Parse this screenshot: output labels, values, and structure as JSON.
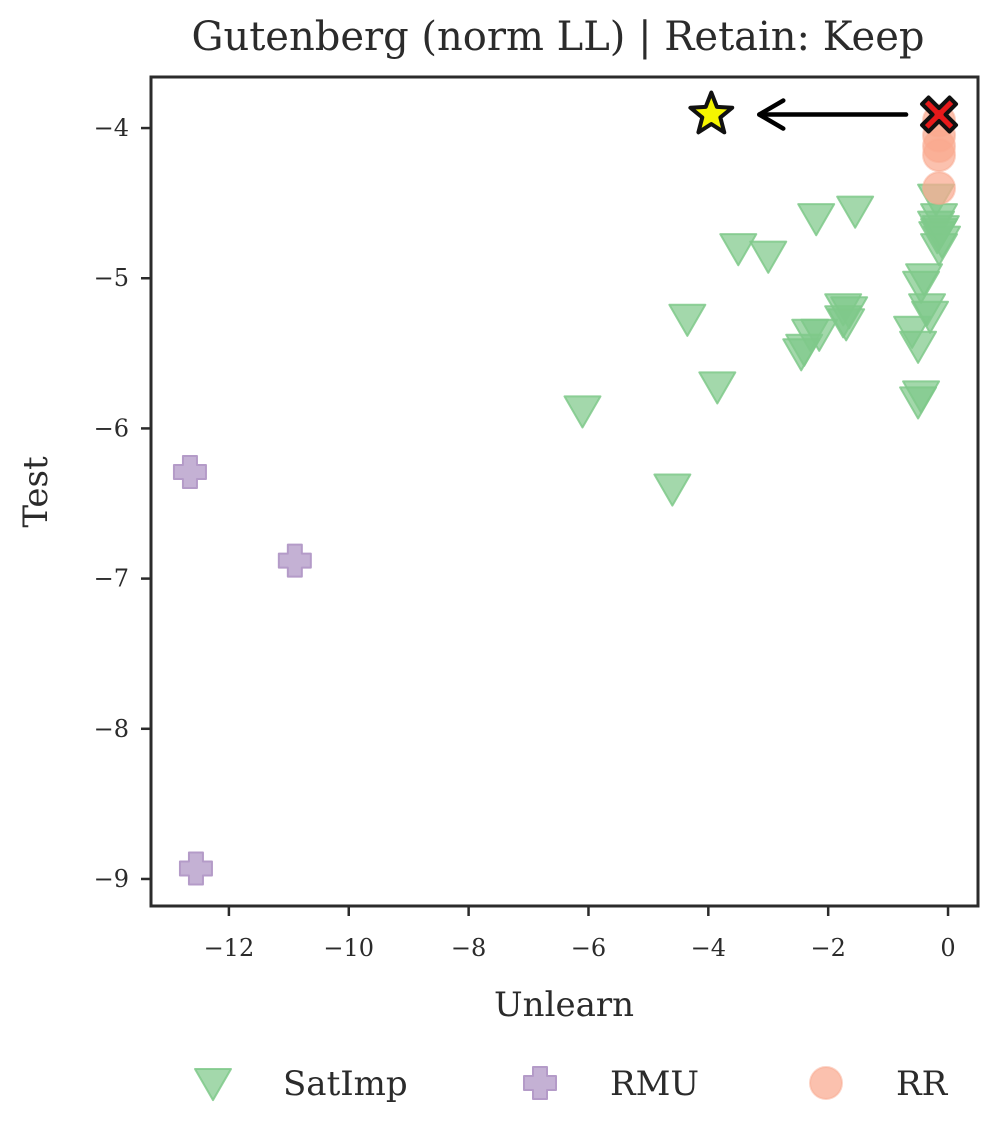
{
  "chart_data": {
    "type": "scatter",
    "title": "Gutenberg (norm LL) | Retain: Keep",
    "xlabel": "Unlearn",
    "ylabel": "Test",
    "xlim": [
      -13.3,
      0.5
    ],
    "ylim": [
      -9.18,
      -3.66
    ],
    "xticks": [
      -12,
      -10,
      -8,
      -6,
      -4,
      -2,
      0
    ],
    "yticks": [
      -9,
      -8,
      -7,
      -6,
      -5,
      -4
    ],
    "xtick_labels": [
      "−12",
      "−10",
      "−8",
      "−6",
      "−4",
      "−2",
      "0"
    ],
    "ytick_labels": [
      "−9",
      "−8",
      "−7",
      "−6",
      "−5",
      "−4"
    ],
    "grid": false,
    "legend_position": "bottom-center",
    "series": [
      {
        "name": "SatImp",
        "marker": "triangle-down",
        "color": "#7fc98a",
        "points": [
          [
            -1.55,
            -4.55
          ],
          [
            -2.2,
            -4.6
          ],
          [
            -3.5,
            -4.8
          ],
          [
            -3.0,
            -4.85
          ],
          [
            -4.35,
            -5.27
          ],
          [
            -2.3,
            -5.37
          ],
          [
            -2.15,
            -5.37
          ],
          [
            -2.4,
            -5.47
          ],
          [
            -2.45,
            -5.5
          ],
          [
            -1.75,
            -5.2
          ],
          [
            -1.65,
            -5.22
          ],
          [
            -1.7,
            -5.3
          ],
          [
            -1.75,
            -5.28
          ],
          [
            -3.85,
            -5.72
          ],
          [
            -6.1,
            -5.88
          ],
          [
            -4.6,
            -6.4
          ],
          [
            -0.6,
            -5.35
          ],
          [
            -0.5,
            -5.45
          ],
          [
            -0.45,
            -5.78
          ],
          [
            -0.5,
            -5.82
          ],
          [
            -0.4,
            -5.0
          ],
          [
            -0.45,
            -5.05
          ],
          [
            -0.35,
            -5.2
          ],
          [
            -0.3,
            -5.25
          ],
          [
            -0.2,
            -4.47
          ],
          [
            -0.15,
            -4.6
          ],
          [
            -0.2,
            -4.65
          ],
          [
            -0.15,
            -4.7
          ],
          [
            -0.1,
            -4.75
          ],
          [
            -0.15,
            -4.8
          ],
          [
            -0.18,
            -4.72
          ],
          [
            -0.12,
            -4.68
          ]
        ]
      },
      {
        "name": "RMU",
        "marker": "plus",
        "color": "#b49bc8",
        "points": [
          [
            -12.65,
            -6.29
          ],
          [
            -10.9,
            -6.88
          ],
          [
            -12.55,
            -8.93
          ]
        ]
      },
      {
        "name": "RR",
        "marker": "circle",
        "color": "#f9a98f",
        "points": [
          [
            -0.15,
            -3.95
          ],
          [
            -0.15,
            -4.05
          ],
          [
            -0.15,
            -4.12
          ],
          [
            -0.15,
            -4.18
          ],
          [
            -0.15,
            -4.4
          ]
        ]
      }
    ],
    "annotations": [
      {
        "marker": "x",
        "color": "#e8191a",
        "x": -0.15,
        "y": -3.91
      },
      {
        "marker": "star",
        "color": "#f5f500",
        "x": -3.95,
        "y": -3.91
      },
      {
        "marker": "arrow",
        "color": "#000000",
        "from": [
          -0.7,
          -3.91
        ],
        "to": [
          -3.15,
          -3.91
        ]
      }
    ]
  }
}
